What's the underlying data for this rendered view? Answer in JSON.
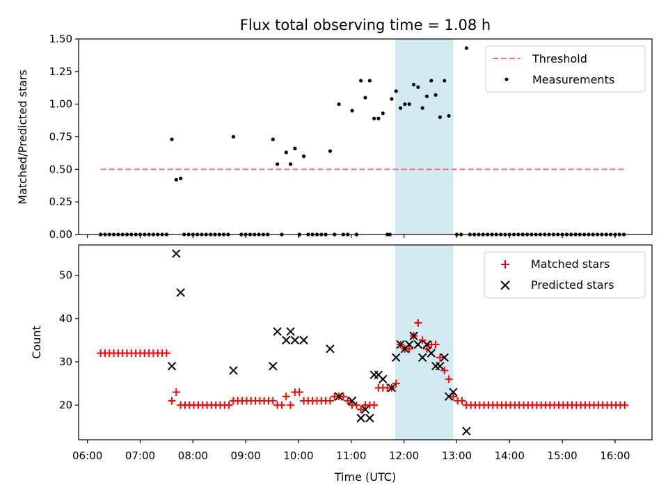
{
  "chart_data": {
    "type": "scatter",
    "title": "Flux total observing time = 1.08 h",
    "xlabel": "Time (UTC)",
    "x_range": [
      "05:50",
      "16:42"
    ],
    "x_ticks": [
      "06:00",
      "07:00",
      "08:00",
      "09:00",
      "10:00",
      "11:00",
      "12:00",
      "13:00",
      "14:00",
      "15:00",
      "16:00"
    ],
    "highlight_span": {
      "start": "11:50",
      "end": "12:56",
      "color": "#add8e6"
    },
    "top_panel": {
      "ylabel": "Matched/Predicted stars",
      "ylim": [
        0,
        1.5
      ],
      "yticks": [
        "0.00",
        "0.25",
        "0.50",
        "0.75",
        "1.00",
        "1.25",
        "1.50"
      ],
      "legend": {
        "position": "upper right",
        "entries": [
          "Threshold",
          "Measurements"
        ]
      },
      "threshold": {
        "name": "Threshold",
        "value": 0.5,
        "x_start": "06:15",
        "x_end": "16:12",
        "color": "#ff7070",
        "style": "dashed"
      },
      "measurements": {
        "name": "Measurements",
        "color": "#000000",
        "points": [
          [
            "07:36",
            0.73
          ],
          [
            "07:41",
            0.42
          ],
          [
            "07:46",
            0.43
          ],
          [
            "08:46",
            0.75
          ],
          [
            "09:31",
            0.73
          ],
          [
            "09:36",
            0.54
          ],
          [
            "09:46",
            0.63
          ],
          [
            "09:51",
            0.54
          ],
          [
            "09:56",
            0.66
          ],
          [
            "10:06",
            0.6
          ],
          [
            "10:36",
            0.64
          ],
          [
            "10:46",
            1.0
          ],
          [
            "11:01",
            0.95
          ],
          [
            "11:11",
            1.18
          ],
          [
            "11:16",
            1.05
          ],
          [
            "11:21",
            1.18
          ],
          [
            "11:26",
            0.89
          ],
          [
            "11:31",
            0.89
          ],
          [
            "11:36",
            0.93
          ],
          [
            "11:46",
            1.04
          ],
          [
            "11:51",
            1.1
          ],
          [
            "11:56",
            0.97
          ],
          [
            "12:01",
            1.0
          ],
          [
            "12:06",
            1.0
          ],
          [
            "12:11",
            1.15
          ],
          [
            "12:16",
            1.13
          ],
          [
            "12:21",
            0.97
          ],
          [
            "12:26",
            1.06
          ],
          [
            "12:31",
            1.18
          ],
          [
            "12:36",
            1.07
          ],
          [
            "12:41",
            0.9
          ],
          [
            "12:46",
            1.18
          ],
          [
            "12:51",
            0.91
          ],
          [
            "13:11",
            1.43
          ]
        ],
        "zero_times": [
          "06:15",
          "06:20",
          "06:25",
          "06:30",
          "06:35",
          "06:40",
          "06:45",
          "06:50",
          "06:55",
          "07:00",
          "07:05",
          "07:10",
          "07:15",
          "07:20",
          "07:25",
          "07:30",
          "07:50",
          "07:55",
          "08:00",
          "08:05",
          "08:10",
          "08:15",
          "08:20",
          "08:25",
          "08:30",
          "08:35",
          "08:40",
          "08:55",
          "09:00",
          "09:05",
          "09:10",
          "09:15",
          "09:20",
          "09:25",
          "09:41",
          "10:01",
          "10:11",
          "10:16",
          "10:21",
          "10:26",
          "10:31",
          "10:41",
          "10:51",
          "10:56",
          "11:06",
          "11:41",
          "11:44",
          "13:00",
          "13:05",
          "13:15",
          "13:20",
          "13:25",
          "13:30",
          "13:35",
          "13:40",
          "13:45",
          "13:50",
          "13:55",
          "14:00",
          "14:05",
          "14:10",
          "14:15",
          "14:20",
          "14:25",
          "14:30",
          "14:35",
          "14:40",
          "14:45",
          "14:50",
          "14:55",
          "15:00",
          "15:05",
          "15:10",
          "15:15",
          "15:20",
          "15:25",
          "15:30",
          "15:35",
          "15:40",
          "15:45",
          "15:50",
          "15:55",
          "16:00",
          "16:05",
          "16:10"
        ]
      }
    },
    "bottom_panel": {
      "ylabel": "Count",
      "ylim": [
        12,
        57
      ],
      "yticks": [
        "20",
        "30",
        "40",
        "50"
      ],
      "legend": {
        "position": "upper right",
        "entries": [
          "Matched stars",
          "Predicted stars"
        ]
      },
      "series": [
        {
          "name": "Matched stars",
          "marker": "+",
          "color": "#ff0000",
          "points": [
            [
              "06:15",
              32
            ],
            [
              "06:20",
              32
            ],
            [
              "06:25",
              32
            ],
            [
              "06:30",
              32
            ],
            [
              "06:35",
              32
            ],
            [
              "06:40",
              32
            ],
            [
              "06:45",
              32
            ],
            [
              "06:50",
              32
            ],
            [
              "06:55",
              32
            ],
            [
              "07:00",
              32
            ],
            [
              "07:05",
              32
            ],
            [
              "07:10",
              32
            ],
            [
              "07:15",
              32
            ],
            [
              "07:20",
              32
            ],
            [
              "07:25",
              32
            ],
            [
              "07:30",
              32
            ],
            [
              "07:36",
              21
            ],
            [
              "07:41",
              23
            ],
            [
              "07:46",
              20
            ],
            [
              "07:51",
              20
            ],
            [
              "07:56",
              20
            ],
            [
              "08:01",
              20
            ],
            [
              "08:06",
              20
            ],
            [
              "08:11",
              20
            ],
            [
              "08:16",
              20
            ],
            [
              "08:21",
              20
            ],
            [
              "08:26",
              20
            ],
            [
              "08:31",
              20
            ],
            [
              "08:36",
              20
            ],
            [
              "08:41",
              20
            ],
            [
              "08:46",
              21
            ],
            [
              "08:51",
              21
            ],
            [
              "08:56",
              21
            ],
            [
              "09:01",
              21
            ],
            [
              "09:06",
              21
            ],
            [
              "09:11",
              21
            ],
            [
              "09:16",
              21
            ],
            [
              "09:21",
              21
            ],
            [
              "09:26",
              21
            ],
            [
              "09:31",
              21
            ],
            [
              "09:36",
              20
            ],
            [
              "09:41",
              20
            ],
            [
              "09:46",
              22
            ],
            [
              "09:51",
              20
            ],
            [
              "09:56",
              23
            ],
            [
              "10:01",
              23
            ],
            [
              "10:06",
              21
            ],
            [
              "10:11",
              21
            ],
            [
              "10:16",
              21
            ],
            [
              "10:21",
              21
            ],
            [
              "10:26",
              21
            ],
            [
              "10:31",
              21
            ],
            [
              "10:36",
              21
            ],
            [
              "10:41",
              22
            ],
            [
              "10:46",
              22
            ],
            [
              "10:51",
              22
            ],
            [
              "10:56",
              21
            ],
            [
              "11:01",
              20
            ],
            [
              "11:06",
              20
            ],
            [
              "11:11",
              19
            ],
            [
              "11:16",
              20
            ],
            [
              "11:21",
              20
            ],
            [
              "11:26",
              20
            ],
            [
              "11:31",
              24
            ],
            [
              "11:36",
              24
            ],
            [
              "11:41",
              24
            ],
            [
              "11:46",
              24
            ],
            [
              "11:51",
              25
            ],
            [
              "11:56",
              34
            ],
            [
              "12:01",
              33
            ],
            [
              "12:06",
              33
            ],
            [
              "12:11",
              36
            ],
            [
              "12:16",
              39
            ],
            [
              "12:21",
              35
            ],
            [
              "12:26",
              33
            ],
            [
              "12:31",
              34
            ],
            [
              "12:36",
              34
            ],
            [
              "12:41",
              31
            ],
            [
              "12:46",
              28
            ],
            [
              "12:51",
              26
            ],
            [
              "12:56",
              22
            ],
            [
              "13:01",
              21
            ],
            [
              "13:06",
              21
            ],
            [
              "13:11",
              20
            ],
            [
              "13:16",
              20
            ],
            [
              "13:21",
              20
            ],
            [
              "13:26",
              20
            ],
            [
              "13:31",
              20
            ],
            [
              "13:36",
              20
            ],
            [
              "13:41",
              20
            ],
            [
              "13:46",
              20
            ],
            [
              "13:51",
              20
            ],
            [
              "13:56",
              20
            ],
            [
              "14:01",
              20
            ],
            [
              "14:06",
              20
            ],
            [
              "14:11",
              20
            ],
            [
              "14:16",
              20
            ],
            [
              "14:21",
              20
            ],
            [
              "14:26",
              20
            ],
            [
              "14:31",
              20
            ],
            [
              "14:36",
              20
            ],
            [
              "14:41",
              20
            ],
            [
              "14:46",
              20
            ],
            [
              "14:51",
              20
            ],
            [
              "14:56",
              20
            ],
            [
              "15:01",
              20
            ],
            [
              "15:06",
              20
            ],
            [
              "15:11",
              20
            ],
            [
              "15:16",
              20
            ],
            [
              "15:21",
              20
            ],
            [
              "15:26",
              20
            ],
            [
              "15:31",
              20
            ],
            [
              "15:36",
              20
            ],
            [
              "15:41",
              20
            ],
            [
              "15:46",
              20
            ],
            [
              "15:51",
              20
            ],
            [
              "15:56",
              20
            ],
            [
              "16:01",
              20
            ],
            [
              "16:06",
              20
            ],
            [
              "16:11",
              20
            ]
          ]
        },
        {
          "name": "Predicted stars",
          "marker": "x",
          "color": "#000000",
          "points": [
            [
              "07:36",
              29
            ],
            [
              "07:41",
              55
            ],
            [
              "07:46",
              46
            ],
            [
              "08:46",
              28
            ],
            [
              "09:31",
              29
            ],
            [
              "09:36",
              37
            ],
            [
              "09:46",
              35
            ],
            [
              "09:51",
              37
            ],
            [
              "09:56",
              35
            ],
            [
              "10:06",
              35
            ],
            [
              "10:36",
              33
            ],
            [
              "10:46",
              22
            ],
            [
              "11:01",
              21
            ],
            [
              "11:11",
              17
            ],
            [
              "11:16",
              19
            ],
            [
              "11:21",
              17
            ],
            [
              "11:26",
              27
            ],
            [
              "11:31",
              27
            ],
            [
              "11:36",
              26
            ],
            [
              "11:46",
              24
            ],
            [
              "11:51",
              31
            ],
            [
              "11:56",
              34
            ],
            [
              "12:01",
              33
            ],
            [
              "12:06",
              34
            ],
            [
              "12:11",
              36
            ],
            [
              "12:16",
              34
            ],
            [
              "12:21",
              31
            ],
            [
              "12:26",
              34
            ],
            [
              "12:31",
              32
            ],
            [
              "12:36",
              29
            ],
            [
              "12:41",
              29
            ],
            [
              "12:46",
              31
            ],
            [
              "12:51",
              22
            ],
            [
              "12:56",
              23
            ],
            [
              "13:11",
              14
            ]
          ]
        }
      ]
    }
  }
}
